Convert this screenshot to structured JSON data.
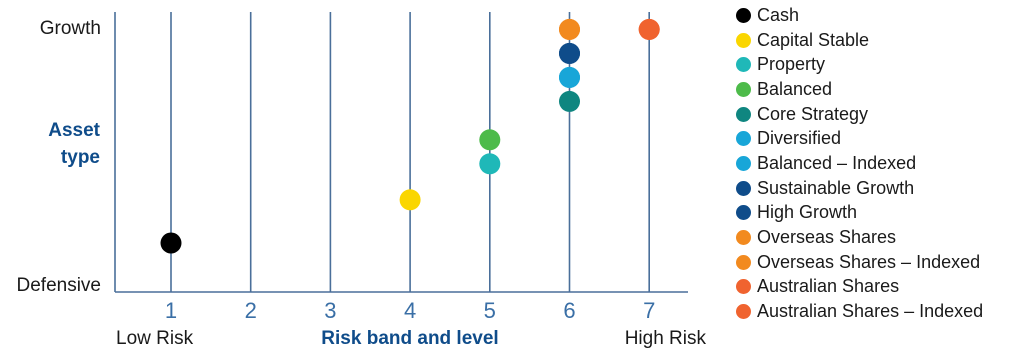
{
  "chart_data": {
    "type": "scatter",
    "xlabel": "Risk band and level",
    "ylabel": "Asset type",
    "x_ticks": [
      "1",
      "2",
      "3",
      "4",
      "5",
      "6",
      "7"
    ],
    "x_end_labels": {
      "left": "Low Risk",
      "right": "High Risk"
    },
    "y_end_labels": {
      "top": "Growth",
      "bottom": "Defensive"
    },
    "ylim": [
      0,
      100
    ],
    "grid": "vertical",
    "legend_position": "right",
    "colors": {
      "axis": "#4a6f9a",
      "gridline": "#4a6f9a",
      "title_text": "#0f4c8a",
      "tick_text": "#3a6fa6"
    },
    "points": [
      {
        "name": "Cash",
        "color": "#000000",
        "risk_band": 1,
        "asset_type": 10
      },
      {
        "name": "Capital Stable",
        "color": "#fad600",
        "risk_band": 4,
        "asset_type": 28
      },
      {
        "name": "Property",
        "color": "#1fb8b8",
        "risk_band": 5,
        "asset_type": 43
      },
      {
        "name": "Balanced",
        "color": "#4dbb4a",
        "risk_band": 5,
        "asset_type": 53
      },
      {
        "name": "Core Strategy",
        "color": "#0f8680",
        "risk_band": 6,
        "asset_type": 69
      },
      {
        "name": "Diversified",
        "color": "#18a6d8",
        "risk_band": 6,
        "asset_type": 79
      },
      {
        "name": "Balanced – Indexed",
        "color": "#18a6d8",
        "risk_band": 6,
        "asset_type": 79
      },
      {
        "name": "Sustainable Growth",
        "color": "#0f4c8a",
        "risk_band": 6,
        "asset_type": 89
      },
      {
        "name": "High Growth",
        "color": "#0f4c8a",
        "risk_band": 6,
        "asset_type": 89
      },
      {
        "name": "Overseas Shares",
        "color": "#f28a1f",
        "risk_band": 6,
        "asset_type": 99
      },
      {
        "name": "Overseas Shares – Indexed",
        "color": "#f28a1f",
        "risk_band": 6,
        "asset_type": 99
      },
      {
        "name": "Australian Shares",
        "color": "#f0632f",
        "risk_band": 7,
        "asset_type": 99
      },
      {
        "name": "Australian Shares – Indexed",
        "color": "#f0632f",
        "risk_band": 7,
        "asset_type": 99
      }
    ]
  }
}
